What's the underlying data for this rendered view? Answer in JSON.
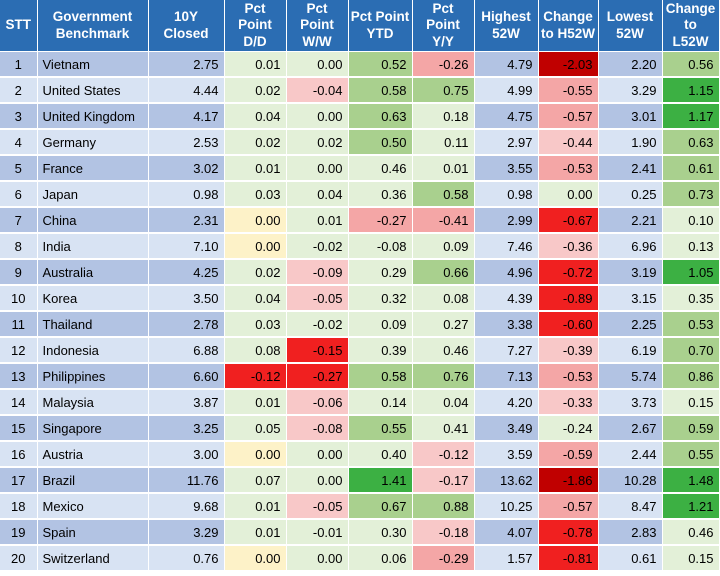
{
  "headers": [
    "STT",
    "Government Benchmark",
    "10Y Closed",
    "Pct Point D/D",
    "Pct Point W/W",
    "Pct Point YTD",
    "Pct Point Y/Y",
    "Highest 52W",
    "Change to H52W",
    "Lowest 52W",
    "Change to L52W"
  ],
  "rows": [
    {
      "stt": "1",
      "name": "Vietnam",
      "closed": "2.75",
      "dd": "0.01",
      "ww": "0.00",
      "ytd": "0.52",
      "yy": "-0.26",
      "h52": "4.79",
      "ch52": "-2.03",
      "l52": "2.20",
      "cl52": "0.56"
    },
    {
      "stt": "2",
      "name": "United States",
      "closed": "4.44",
      "dd": "0.02",
      "ww": "-0.04",
      "ytd": "0.58",
      "yy": "0.75",
      "h52": "4.99",
      "ch52": "-0.55",
      "l52": "3.29",
      "cl52": "1.15"
    },
    {
      "stt": "3",
      "name": "United Kingdom",
      "closed": "4.17",
      "dd": "0.04",
      "ww": "0.00",
      "ytd": "0.63",
      "yy": "0.18",
      "h52": "4.75",
      "ch52": "-0.57",
      "l52": "3.01",
      "cl52": "1.17"
    },
    {
      "stt": "4",
      "name": "Germany",
      "closed": "2.53",
      "dd": "0.02",
      "ww": "0.02",
      "ytd": "0.50",
      "yy": "0.11",
      "h52": "2.97",
      "ch52": "-0.44",
      "l52": "1.90",
      "cl52": "0.63"
    },
    {
      "stt": "5",
      "name": "France",
      "closed": "3.02",
      "dd": "0.01",
      "ww": "0.00",
      "ytd": "0.46",
      "yy": "0.01",
      "h52": "3.55",
      "ch52": "-0.53",
      "l52": "2.41",
      "cl52": "0.61"
    },
    {
      "stt": "6",
      "name": "Japan",
      "closed": "0.98",
      "dd": "0.03",
      "ww": "0.04",
      "ytd": "0.36",
      "yy": "0.58",
      "h52": "0.98",
      "ch52": "0.00",
      "l52": "0.25",
      "cl52": "0.73"
    },
    {
      "stt": "7",
      "name": "China",
      "closed": "2.31",
      "dd": "0.00",
      "ww": "0.01",
      "ytd": "-0.27",
      "yy": "-0.41",
      "h52": "2.99",
      "ch52": "-0.67",
      "l52": "2.21",
      "cl52": "0.10"
    },
    {
      "stt": "8",
      "name": "India",
      "closed": "7.10",
      "dd": "0.00",
      "ww": "-0.02",
      "ytd": "-0.08",
      "yy": "0.09",
      "h52": "7.46",
      "ch52": "-0.36",
      "l52": "6.96",
      "cl52": "0.13"
    },
    {
      "stt": "9",
      "name": "Australia",
      "closed": "4.25",
      "dd": "0.02",
      "ww": "-0.09",
      "ytd": "0.29",
      "yy": "0.66",
      "h52": "4.96",
      "ch52": "-0.72",
      "l52": "3.19",
      "cl52": "1.05"
    },
    {
      "stt": "10",
      "name": "Korea",
      "closed": "3.50",
      "dd": "0.04",
      "ww": "-0.05",
      "ytd": "0.32",
      "yy": "0.08",
      "h52": "4.39",
      "ch52": "-0.89",
      "l52": "3.15",
      "cl52": "0.35"
    },
    {
      "stt": "11",
      "name": "Thailand",
      "closed": "2.78",
      "dd": "0.03",
      "ww": "-0.02",
      "ytd": "0.09",
      "yy": "0.27",
      "h52": "3.38",
      "ch52": "-0.60",
      "l52": "2.25",
      "cl52": "0.53"
    },
    {
      "stt": "12",
      "name": "Indonesia",
      "closed": "6.88",
      "dd": "0.08",
      "ww": "-0.15",
      "ytd": "0.39",
      "yy": "0.46",
      "h52": "7.27",
      "ch52": "-0.39",
      "l52": "6.19",
      "cl52": "0.70"
    },
    {
      "stt": "13",
      "name": "Philippines",
      "closed": "6.60",
      "dd": "-0.12",
      "ww": "-0.27",
      "ytd": "0.58",
      "yy": "0.76",
      "h52": "7.13",
      "ch52": "-0.53",
      "l52": "5.74",
      "cl52": "0.86"
    },
    {
      "stt": "14",
      "name": "Malaysia",
      "closed": "3.87",
      "dd": "0.01",
      "ww": "-0.06",
      "ytd": "0.14",
      "yy": "0.04",
      "h52": "4.20",
      "ch52": "-0.33",
      "l52": "3.73",
      "cl52": "0.15"
    },
    {
      "stt": "15",
      "name": "Singapore",
      "closed": "3.25",
      "dd": "0.05",
      "ww": "-0.08",
      "ytd": "0.55",
      "yy": "0.41",
      "h52": "3.49",
      "ch52": "-0.24",
      "l52": "2.67",
      "cl52": "0.59"
    },
    {
      "stt": "16",
      "name": "Austria",
      "closed": "3.00",
      "dd": "0.00",
      "ww": "0.00",
      "ytd": "0.40",
      "yy": "-0.12",
      "h52": "3.59",
      "ch52": "-0.59",
      "l52": "2.44",
      "cl52": "0.55"
    },
    {
      "stt": "17",
      "name": "Brazil",
      "closed": "11.76",
      "dd": "0.07",
      "ww": "0.00",
      "ytd": "1.41",
      "yy": "-0.17",
      "h52": "13.62",
      "ch52": "-1.86",
      "l52": "10.28",
      "cl52": "1.48"
    },
    {
      "stt": "18",
      "name": "Mexico",
      "closed": "9.68",
      "dd": "0.01",
      "ww": "-0.05",
      "ytd": "0.67",
      "yy": "0.88",
      "h52": "10.25",
      "ch52": "-0.57",
      "l52": "8.47",
      "cl52": "1.21"
    },
    {
      "stt": "19",
      "name": "Spain",
      "closed": "3.29",
      "dd": "0.01",
      "ww": "-0.01",
      "ytd": "0.30",
      "yy": "-0.18",
      "h52": "4.07",
      "ch52": "-0.78",
      "l52": "2.83",
      "cl52": "0.46"
    },
    {
      "stt": "20",
      "name": "Switzerland",
      "closed": "0.76",
      "dd": "0.00",
      "ww": "0.00",
      "ytd": "0.06",
      "yy": "-0.29",
      "h52": "1.57",
      "ch52": "-0.81",
      "l52": "0.61",
      "cl52": "0.15"
    }
  ],
  "colors": {
    "header": "#2b6db3",
    "row_odd": "#b2c3e3",
    "row_even": "#d8e3f3",
    "neutral": "#e3f0d8",
    "zero_yellow": "#fdf2c8",
    "pos_light": "#c6e0b4",
    "pos_mid": "#a9d08e",
    "pos_strong": "#3cb043",
    "neg_light": "#f8c8c8",
    "neg_mid": "#f4a6a6",
    "neg_strong": "#f02020",
    "neg_deep": "#c00000"
  }
}
